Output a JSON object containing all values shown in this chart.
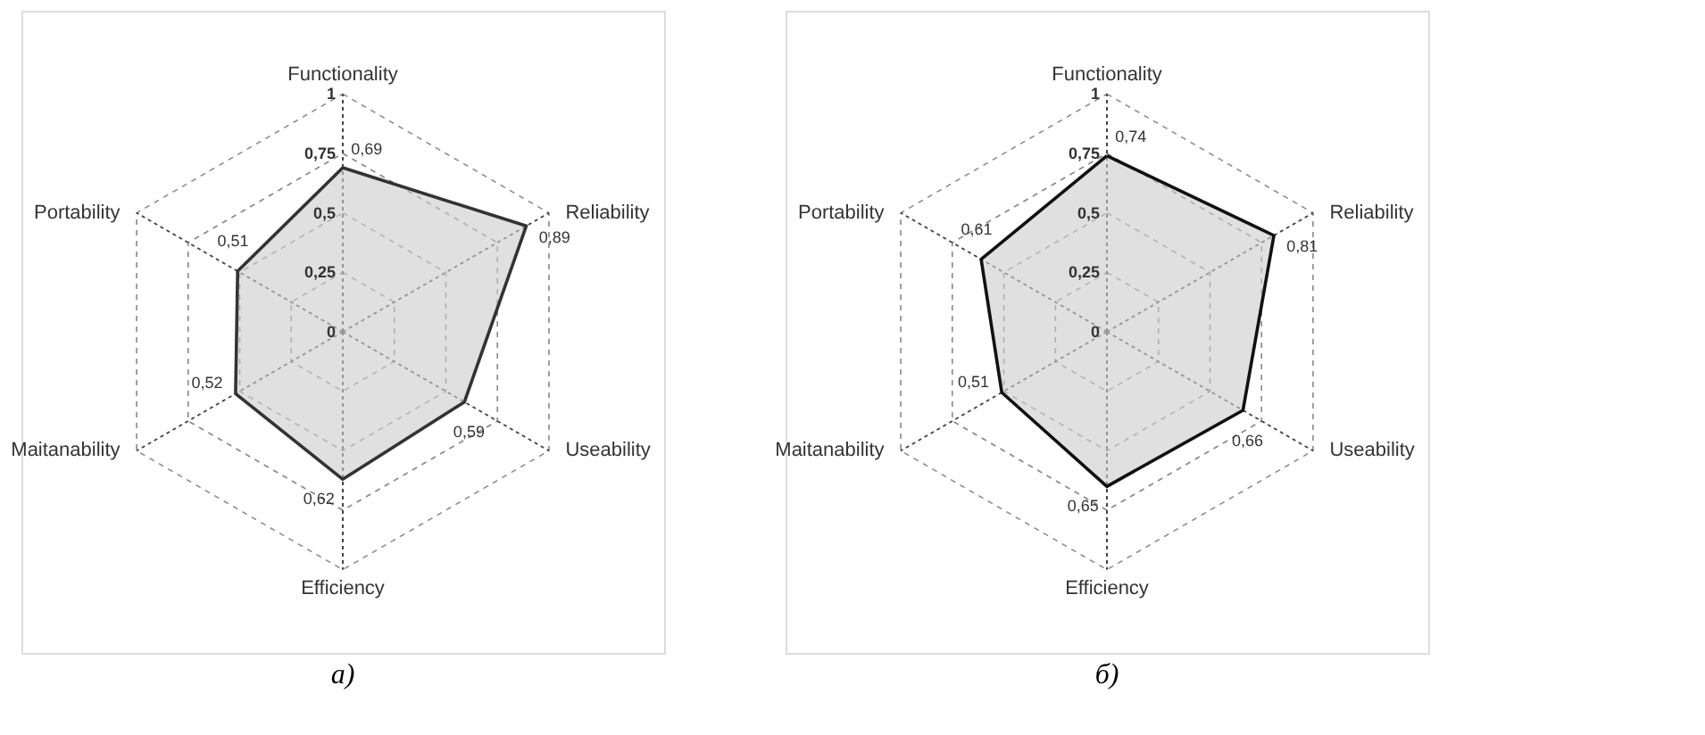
{
  "chart_data": [
    {
      "type": "radar",
      "title": "а)",
      "categories": [
        "Functionality",
        "Reliability",
        "Useability",
        "Efficiency",
        "Maitanability",
        "Portability"
      ],
      "series": [
        {
          "color": "#333333",
          "values": [
            0.69,
            0.89,
            0.59,
            0.62,
            0.52,
            0.51
          ],
          "value_labels": [
            "0,69",
            "0,89",
            "0,59",
            "0,62",
            "0,52",
            "0,51"
          ]
        }
      ],
      "ylim": [
        0,
        1
      ],
      "yticks": [
        0,
        {
          "value": 0.25,
          "label": "0,25"
        },
        {
          "value": 0.5,
          "label": "0,5"
        },
        {
          "value": 0.75,
          "label": "0,75"
        },
        1
      ],
      "grid": true,
      "line_style": "solid"
    },
    {
      "type": "radar",
      "title": "б)",
      "categories": [
        "Functionality",
        "Reliability",
        "Useability",
        "Efficiency",
        "Maitanability",
        "Portability"
      ],
      "series": [
        {
          "color": "#111111",
          "values": [
            0.74,
            0.81,
            0.66,
            0.65,
            0.51,
            0.61
          ],
          "value_labels": [
            "0,74",
            "0,81",
            "0,66",
            "0,65",
            "0,51",
            "0,61"
          ]
        }
      ],
      "ylim": [
        0,
        1
      ],
      "yticks": [
        0,
        {
          "value": 0.25,
          "label": "0,25"
        },
        {
          "value": 0.5,
          "label": "0,5"
        },
        {
          "value": 0.75,
          "label": "0,75"
        },
        1
      ],
      "grid": true,
      "line_style": "solid"
    }
  ]
}
